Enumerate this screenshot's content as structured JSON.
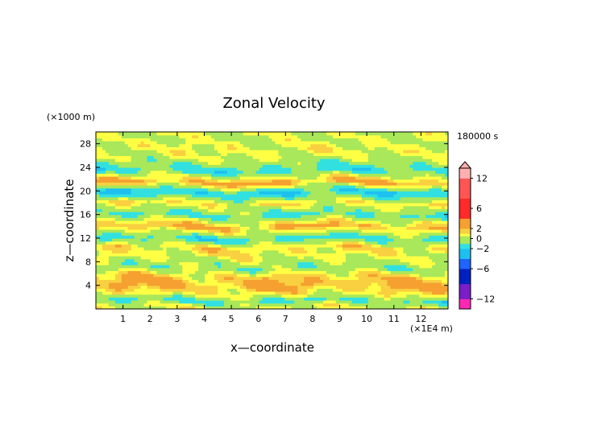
{
  "chart_data": {
    "type": "heatmap",
    "title": "Zonal Velocity",
    "xlabel": "x—coordinate",
    "ylabel": "z—coordinate",
    "x_unit_label": "(×1E4 m)",
    "y_unit_label": "(×1000 m)",
    "time_label": "180000 s",
    "xlim": [
      0,
      13
    ],
    "ylim": [
      0,
      30
    ],
    "x_ticks": [
      "1",
      "2",
      "3",
      "4",
      "5",
      "6",
      "7",
      "8",
      "9",
      "10",
      "11",
      "12"
    ],
    "y_ticks": [
      "4",
      "8",
      "12",
      "16",
      "20",
      "24",
      "28"
    ],
    "colorbar": {
      "tick_labels": [
        "12",
        "6",
        "2",
        "0",
        "−2",
        "−6",
        "−12"
      ],
      "tick_values": [
        12,
        6,
        2,
        0,
        -2,
        -6,
        -12
      ],
      "range": [
        -14,
        14
      ],
      "colors": {
        "pos_high": "#ffb0b0",
        "pos_mid": "#ff5555",
        "pos_low": "#ff2a2a",
        "pos_orange": "#f5a030",
        "pos_gold": "#f8d040",
        "pos_yellow": "#ffff44",
        "near_zero": "#a8e85a",
        "neg_aqua": "#32e0e0",
        "neg_cyan": "#1ec0f0",
        "neg_blue": "#1e64ff",
        "neg_dark": "#0020c0",
        "neg_purple": "#7a1ec8",
        "neg_magenta": "#ff28b4"
      }
    },
    "field_bands": [
      {
        "z": 28.5,
        "value": 0.3
      },
      {
        "z": 27,
        "value": 0.8
      },
      {
        "z": 25.5,
        "value": 0.2
      },
      {
        "z": 23.5,
        "value": -1.5
      },
      {
        "z": 21.5,
        "value": 2.6
      },
      {
        "z": 19.8,
        "value": -2.4
      },
      {
        "z": 18,
        "value": 1.2
      },
      {
        "z": 16,
        "value": -1.2
      },
      {
        "z": 14,
        "value": 2.3
      },
      {
        "z": 12,
        "value": -1.6
      },
      {
        "z": 10.5,
        "value": 1.4
      },
      {
        "z": 8.5,
        "value": 0.4
      },
      {
        "z": 7,
        "value": -0.6
      },
      {
        "z": 5.5,
        "value": 1.8
      },
      {
        "z": 4,
        "value": 2.4
      },
      {
        "z": 2.5,
        "value": 0.8
      },
      {
        "z": 1.5,
        "value": -1.2
      },
      {
        "z": 0.5,
        "value": 0.5
      }
    ]
  }
}
